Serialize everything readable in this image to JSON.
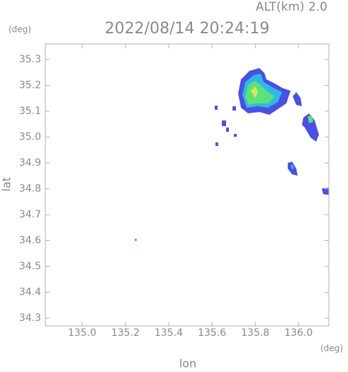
{
  "chart_data": {
    "type": "map",
    "title": "2022/08/14 20:24:19",
    "subtitle": "ALT(km) 2.0",
    "y_unit": "(deg)",
    "x_unit": "(deg)",
    "x_label": "lon",
    "y_label": "lat",
    "xlim": [
      134.83,
      136.14
    ],
    "ylim": [
      34.27,
      35.36
    ],
    "xticks": [
      {
        "value": 135,
        "label": "135.0"
      },
      135.2,
      135.4,
      135.6,
      135.8,
      {
        "value": 136,
        "label": "136.0"
      }
    ],
    "yticks": [
      34.3,
      34.4,
      34.5,
      34.6,
      34.7,
      34.8,
      34.9,
      {
        "value": 35,
        "label": "35.0"
      },
      35.1,
      35.2,
      35.3
    ]
  }
}
